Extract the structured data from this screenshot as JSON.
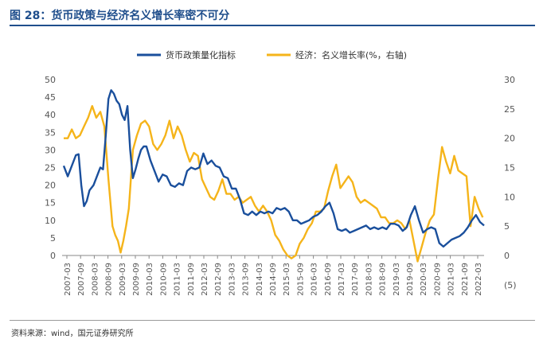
{
  "title": "图 28：货币政策与经济名义增长率密不可分",
  "source": "资料来源：wind，国元证券研究所",
  "colors": {
    "policy": "#1a4f9c",
    "economy": "#f5b41a",
    "title": "#1f4e8c",
    "negative_tick": "#c00000"
  },
  "chart_data": {
    "type": "line",
    "title": "",
    "legend": "top-center",
    "grid": false,
    "x_tick_labels": [
      "2007-03",
      "2007-09",
      "2008-03",
      "2008-09",
      "2009-03",
      "2009-09",
      "2010-03",
      "2010-09",
      "2011-03",
      "2011-09",
      "2012-03",
      "2012-09",
      "2013-03",
      "2013-09",
      "2014-03",
      "2014-09",
      "2015-03",
      "2015-09",
      "2016-03",
      "2016-09",
      "2017-03",
      "2017-09",
      "2018-03",
      "2018-09",
      "2019-03",
      "2019-09",
      "2020-03",
      "2020-09",
      "2021-03",
      "2021-09",
      "2022-03"
    ],
    "x_range": [
      2007.0,
      2022.5
    ],
    "y_left": {
      "ylim": [
        0,
        50
      ],
      "ticks": [
        "0",
        "5",
        "10",
        "15",
        "20",
        "25",
        "30",
        "35",
        "40",
        "45",
        "50"
      ]
    },
    "y_right": {
      "ylim": [
        -5,
        30
      ],
      "ticks": [
        "(5)",
        "0",
        "5",
        "10",
        "15",
        "20",
        "25",
        "30"
      ]
    },
    "series": [
      {
        "name": "货币政策量化指标",
        "axis": "left",
        "x": [
          2007.0,
          2007.15,
          2007.3,
          2007.45,
          2007.55,
          2007.65,
          2007.75,
          2007.85,
          2007.95,
          2008.1,
          2008.25,
          2008.35,
          2008.45,
          2008.55,
          2008.65,
          2008.75,
          2008.85,
          2008.95,
          2009.05,
          2009.15,
          2009.25,
          2009.35,
          2009.45,
          2009.55,
          2009.65,
          2009.75,
          2009.85,
          2009.95,
          2010.05,
          2010.2,
          2010.35,
          2010.5,
          2010.65,
          2010.8,
          2010.95,
          2011.1,
          2011.25,
          2011.4,
          2011.55,
          2011.7,
          2011.85,
          2012.0,
          2012.15,
          2012.3,
          2012.45,
          2012.6,
          2012.75,
          2012.9,
          2013.05,
          2013.2,
          2013.35,
          2013.5,
          2013.65,
          2013.8,
          2013.95,
          2014.1,
          2014.25,
          2014.4,
          2014.55,
          2014.7,
          2014.85,
          2015.0,
          2015.15,
          2015.3,
          2015.45,
          2015.6,
          2015.75,
          2015.9,
          2016.05,
          2016.2,
          2016.35,
          2016.5,
          2016.65,
          2016.8,
          2016.95,
          2017.1,
          2017.25,
          2017.4,
          2017.55,
          2017.7,
          2017.85,
          2018.0,
          2018.15,
          2018.3,
          2018.45,
          2018.6,
          2018.75,
          2018.9,
          2019.05,
          2019.2,
          2019.35,
          2019.5,
          2019.65,
          2019.8,
          2019.95,
          2020.1,
          2020.25,
          2020.4,
          2020.55,
          2020.7,
          2020.85,
          2021.0,
          2021.15,
          2021.3,
          2021.45,
          2021.6,
          2021.75,
          2021.9,
          2022.05,
          2022.2,
          2022.35,
          2022.5
        ],
        "values": [
          25.5,
          22.5,
          25.5,
          28.5,
          28.8,
          20.0,
          14.0,
          15.5,
          18.5,
          20.0,
          23.0,
          25.0,
          24.5,
          34.0,
          44.5,
          47.0,
          46.0,
          44.0,
          43.0,
          40.0,
          38.5,
          42.5,
          30.0,
          22.0,
          24.5,
          27.5,
          30.0,
          31.0,
          31.0,
          27.0,
          24.0,
          21.0,
          23.0,
          22.5,
          20.0,
          19.5,
          20.5,
          20.0,
          24.0,
          25.0,
          24.5,
          25.0,
          29.0,
          26.0,
          27.0,
          25.5,
          25.0,
          22.5,
          22.0,
          19.0,
          19.0,
          16.0,
          12.0,
          11.5,
          12.5,
          11.5,
          12.5,
          12.0,
          12.5,
          12.0,
          13.5,
          13.0,
          13.5,
          12.5,
          10.0,
          10.0,
          9.0,
          9.5,
          10.0,
          11.0,
          11.5,
          12.5,
          14.0,
          15.0,
          12.0,
          7.5,
          7.0,
          7.5,
          6.5,
          7.0,
          7.5,
          8.0,
          8.5,
          7.5,
          8.0,
          7.5,
          8.0,
          7.5,
          9.0,
          9.0,
          8.5,
          7.0,
          8.0,
          11.5,
          14.0,
          10.0,
          6.5,
          7.5,
          8.0,
          7.5,
          3.5,
          2.5,
          3.5,
          4.5,
          5.0,
          5.5,
          6.5,
          8.0,
          10.0,
          11.5,
          9.5,
          8.5
        ]
      },
      {
        "name": "经济：名义增长率(%，右轴)",
        "axis": "right",
        "x": [
          2007.0,
          2007.15,
          2007.3,
          2007.45,
          2007.6,
          2007.75,
          2007.9,
          2008.05,
          2008.2,
          2008.35,
          2008.5,
          2008.65,
          2008.8,
          2008.9,
          2009.0,
          2009.1,
          2009.2,
          2009.3,
          2009.4,
          2009.55,
          2009.7,
          2009.85,
          2010.0,
          2010.15,
          2010.3,
          2010.45,
          2010.6,
          2010.75,
          2010.9,
          2011.05,
          2011.2,
          2011.35,
          2011.5,
          2011.65,
          2011.8,
          2011.95,
          2012.1,
          2012.25,
          2012.4,
          2012.55,
          2012.7,
          2012.85,
          2013.0,
          2013.15,
          2013.3,
          2013.45,
          2013.6,
          2013.75,
          2013.9,
          2014.05,
          2014.2,
          2014.35,
          2014.5,
          2014.65,
          2014.8,
          2014.95,
          2015.1,
          2015.25,
          2015.4,
          2015.55,
          2015.7,
          2015.85,
          2016.0,
          2016.15,
          2016.3,
          2016.45,
          2016.6,
          2016.75,
          2016.9,
          2017.05,
          2017.2,
          2017.35,
          2017.5,
          2017.65,
          2017.8,
          2017.95,
          2018.1,
          2018.25,
          2018.4,
          2018.55,
          2018.7,
          2018.85,
          2019.0,
          2019.15,
          2019.3,
          2019.45,
          2019.6,
          2019.75,
          2019.9,
          2020.05,
          2020.2,
          2020.35,
          2020.5,
          2020.65,
          2020.8,
          2020.95,
          2021.1,
          2021.25,
          2021.4,
          2021.55,
          2021.7,
          2021.85,
          2022.0,
          2022.15,
          2022.3,
          2022.45
        ],
        "values": [
          20.0,
          20.0,
          21.5,
          20.0,
          20.5,
          22.0,
          23.5,
          25.5,
          23.5,
          24.5,
          22.0,
          13.0,
          5.0,
          3.5,
          2.5,
          0.5,
          2.5,
          5.0,
          8.0,
          18.0,
          20.5,
          22.5,
          23.0,
          22.0,
          19.0,
          18.0,
          19.0,
          20.5,
          23.0,
          20.0,
          22.0,
          20.5,
          18.0,
          16.0,
          17.5,
          17.0,
          13.0,
          11.5,
          10.0,
          9.5,
          11.0,
          13.0,
          10.5,
          10.5,
          9.5,
          10.0,
          9.0,
          9.5,
          10.0,
          8.5,
          7.5,
          8.5,
          7.5,
          6.0,
          3.5,
          2.5,
          1.0,
          0.0,
          -0.5,
          0.0,
          2.0,
          3.0,
          4.5,
          5.5,
          7.5,
          7.5,
          8.0,
          11.0,
          13.5,
          15.5,
          11.5,
          12.5,
          13.5,
          12.5,
          10.0,
          9.0,
          9.5,
          9.0,
          8.5,
          8.0,
          6.5,
          6.5,
          5.5,
          5.5,
          6.0,
          5.5,
          4.5,
          6.0,
          2.5,
          -1.0,
          1.5,
          4.0,
          6.0,
          7.0,
          13.0,
          18.5,
          16.0,
          14.0,
          17.0,
          14.5,
          14.0,
          13.5,
          5.0,
          10.0,
          8.0,
          6.5
        ]
      }
    ]
  }
}
